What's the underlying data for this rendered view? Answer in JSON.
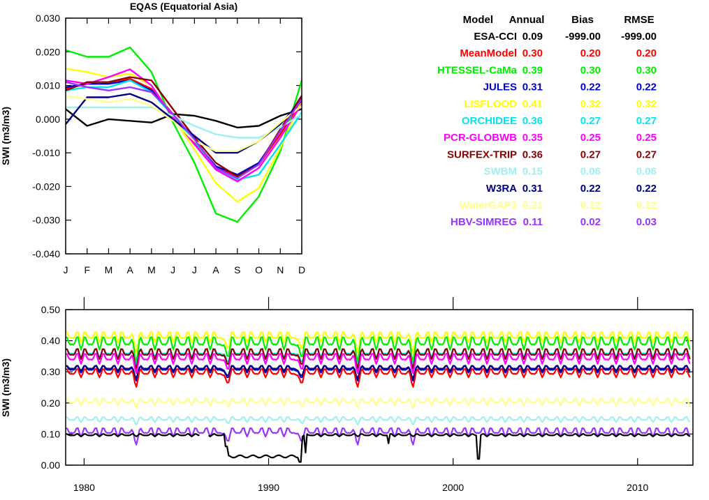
{
  "chart_data": [
    {
      "type": "line",
      "title": "EQAS (Equatorial Asia)",
      "ylabel": "SWI (m3/m3)",
      "xlabel": "",
      "categories": [
        "J",
        "F",
        "M",
        "A",
        "M",
        "J",
        "J",
        "A",
        "S",
        "O",
        "N",
        "D"
      ],
      "ylim": [
        -0.04,
        0.03
      ],
      "yticks": [
        -0.04,
        -0.03,
        -0.02,
        -0.01,
        0.0,
        0.01,
        0.02,
        0.03
      ],
      "ytick_labels": [
        "-0.040",
        "-0.030",
        "-0.020",
        "-0.010",
        "0.000",
        "0.010",
        "0.020",
        "0.030"
      ],
      "grid": false,
      "series": [
        {
          "name": "ESA-CCI",
          "color": "#000000",
          "values": [
            0.003,
            -0.002,
            0.0,
            -0.0005,
            -0.001,
            0.0015,
            0.001,
            -0.0005,
            -0.0025,
            -0.002,
            0.001,
            0.003
          ]
        },
        {
          "name": "MeanModel",
          "color": "#ff0000",
          "values": [
            0.009,
            0.0105,
            0.0105,
            0.012,
            0.009,
            0.0015,
            -0.007,
            -0.0145,
            -0.017,
            -0.0135,
            -0.0045,
            0.0055
          ]
        },
        {
          "name": "HTESSEL-CaMa",
          "color": "#00ee00",
          "values": [
            0.0205,
            0.0185,
            0.0185,
            0.0213,
            0.014,
            -0.001,
            -0.013,
            -0.028,
            -0.0305,
            -0.023,
            -0.0095,
            0.0115
          ]
        },
        {
          "name": "JULES",
          "color": "#0000cc",
          "values": [
            0.0095,
            0.0105,
            0.0105,
            0.0115,
            0.0085,
            0.001,
            -0.0065,
            -0.014,
            -0.0165,
            -0.013,
            -0.0035,
            0.0065
          ]
        },
        {
          "name": "LISFLOOD",
          "color": "#ffff00",
          "values": [
            0.015,
            0.014,
            0.0125,
            0.0135,
            0.01,
            0.0005,
            -0.009,
            -0.019,
            -0.0245,
            -0.0205,
            -0.0085,
            0.0055
          ]
        },
        {
          "name": "ORCHIDEE",
          "color": "#00e5ee",
          "values": [
            0.0085,
            0.0095,
            0.0095,
            0.0115,
            0.008,
            0.001,
            -0.0065,
            -0.0145,
            -0.018,
            -0.0165,
            -0.0075,
            0.002
          ]
        },
        {
          "name": "PCR-GLOBWB",
          "color": "#ff00ff",
          "values": [
            0.0115,
            0.0105,
            0.0125,
            0.0148,
            0.01,
            0.0005,
            -0.0075,
            -0.015,
            -0.0185,
            -0.0145,
            -0.0055,
            0.0045
          ]
        },
        {
          "name": "SURFEX-TRIP",
          "color": "#8b0000",
          "values": [
            0.0085,
            0.011,
            0.011,
            0.0125,
            0.0115,
            0.003,
            -0.0055,
            -0.013,
            -0.017,
            -0.0135,
            -0.003,
            0.007
          ]
        },
        {
          "name": "SWBM",
          "color": "#a0f0f0",
          "values": [
            0.0035,
            0.0035,
            0.0035,
            0.0035,
            0.0035,
            0.001,
            -0.002,
            -0.0045,
            -0.0055,
            -0.0055,
            -0.0025,
            0.0015
          ]
        },
        {
          "name": "W3RA",
          "color": "#000080",
          "values": [
            -0.0015,
            0.0065,
            0.0065,
            0.0075,
            0.005,
            0.0,
            -0.005,
            -0.01,
            -0.01,
            -0.0065,
            -0.0015,
            0.0055
          ]
        },
        {
          "name": "WaterGAP3",
          "color": "#ffff88",
          "values": [
            0.007,
            0.006,
            0.005,
            0.006,
            0.004,
            -0.0005,
            -0.0065,
            -0.0095,
            -0.0095,
            -0.0065,
            -0.001,
            0.004
          ]
        },
        {
          "name": "HBV-SIMREG",
          "color": "#9933ff",
          "values": [
            0.011,
            0.0095,
            0.0085,
            0.0095,
            0.008,
            0.0015,
            -0.006,
            -0.0145,
            -0.0175,
            -0.0135,
            -0.0035,
            0.006
          ]
        }
      ]
    },
    {
      "type": "line",
      "title": "",
      "ylabel": "SWI (m3/m3)",
      "xlabel": "",
      "xlim": [
        1979,
        2013
      ],
      "xticks": [
        1980,
        1990,
        2000,
        2010
      ],
      "ylim": [
        0.0,
        0.5
      ],
      "yticks": [
        0.0,
        0.1,
        0.2,
        0.3,
        0.4,
        0.5
      ],
      "ytick_labels": [
        "0.00",
        "0.10",
        "0.20",
        "0.30",
        "0.40",
        "0.50"
      ],
      "grid": false,
      "series": [
        {
          "name": "LISFLOOD",
          "color": "#ffff00",
          "base": 0.415,
          "amp": 0.012,
          "dip": 0.04
        },
        {
          "name": "HTESSEL-CaMa",
          "color": "#00ee00",
          "base": 0.395,
          "amp": 0.015,
          "dip": 0.045
        },
        {
          "name": "ORCHIDEE",
          "color": "#00e5ee",
          "base": 0.363,
          "amp": 0.01,
          "dip": 0.03
        },
        {
          "name": "SURFEX-TRIP",
          "color": "#8b0000",
          "base": 0.36,
          "amp": 0.012,
          "dip": 0.035
        },
        {
          "name": "PCR-GLOBWB",
          "color": "#ff00ff",
          "base": 0.345,
          "amp": 0.012,
          "dip": 0.035
        },
        {
          "name": "JULES",
          "color": "#0000cc",
          "base": 0.31,
          "amp": 0.008,
          "dip": 0.03
        },
        {
          "name": "W3RA",
          "color": "#000080",
          "base": 0.313,
          "amp": 0.006,
          "dip": 0.028
        },
        {
          "name": "MeanModel",
          "color": "#ff0000",
          "base": 0.298,
          "amp": 0.01,
          "dip": 0.035
        },
        {
          "name": "WaterGAP3",
          "color": "#ffff88",
          "base": 0.205,
          "amp": 0.008,
          "dip": 0.01
        },
        {
          "name": "SWBM",
          "color": "#a0f0f0",
          "base": 0.148,
          "amp": 0.006,
          "dip": 0.01
        },
        {
          "name": "HBV-SIMREG",
          "color": "#9933ff",
          "base": 0.108,
          "amp": 0.01,
          "dip": 0.03
        },
        {
          "name": "ESA-CCI",
          "color": "#000000",
          "base": 0.097,
          "amp": 0.003,
          "dip": 0.0
        }
      ]
    }
  ],
  "stats_table": {
    "headers": [
      "Model",
      "Annual",
      "Bias",
      "RMSE"
    ],
    "rows": [
      {
        "model": "ESA-CCI",
        "annual": "0.09",
        "bias": "-999.00",
        "rmse": "-999.00",
        "color": "#000000"
      },
      {
        "model": "MeanModel",
        "annual": "0.30",
        "bias": "0.20",
        "rmse": "0.20",
        "color": "#ff0000"
      },
      {
        "model": "HTESSEL-CaMa",
        "annual": "0.39",
        "bias": "0.30",
        "rmse": "0.30",
        "color": "#00ee00"
      },
      {
        "model": "JULES",
        "annual": "0.31",
        "bias": "0.22",
        "rmse": "0.22",
        "color": "#0000cc"
      },
      {
        "model": "LISFLOOD",
        "annual": "0.41",
        "bias": "0.32",
        "rmse": "0.32",
        "color": "#ffff00"
      },
      {
        "model": "ORCHIDEE",
        "annual": "0.36",
        "bias": "0.27",
        "rmse": "0.27",
        "color": "#00e5ee"
      },
      {
        "model": "PCR-GLOBWB",
        "annual": "0.35",
        "bias": "0.25",
        "rmse": "0.25",
        "color": "#ff00ff"
      },
      {
        "model": "SURFEX-TRIP",
        "annual": "0.36",
        "bias": "0.27",
        "rmse": "0.27",
        "color": "#8b0000"
      },
      {
        "model": "SWBM",
        "annual": "0.15",
        "bias": "0.06",
        "rmse": "0.06",
        "color": "#a0f0f0"
      },
      {
        "model": "W3RA",
        "annual": "0.31",
        "bias": "0.22",
        "rmse": "0.22",
        "color": "#000080"
      },
      {
        "model": "WaterGAP3",
        "annual": "0.21",
        "bias": "0.12",
        "rmse": "0.12",
        "color": "#ffff88"
      },
      {
        "model": "HBV-SIMREG",
        "annual": "0.11",
        "bias": "0.02",
        "rmse": "0.03",
        "color": "#9933ff"
      }
    ]
  }
}
